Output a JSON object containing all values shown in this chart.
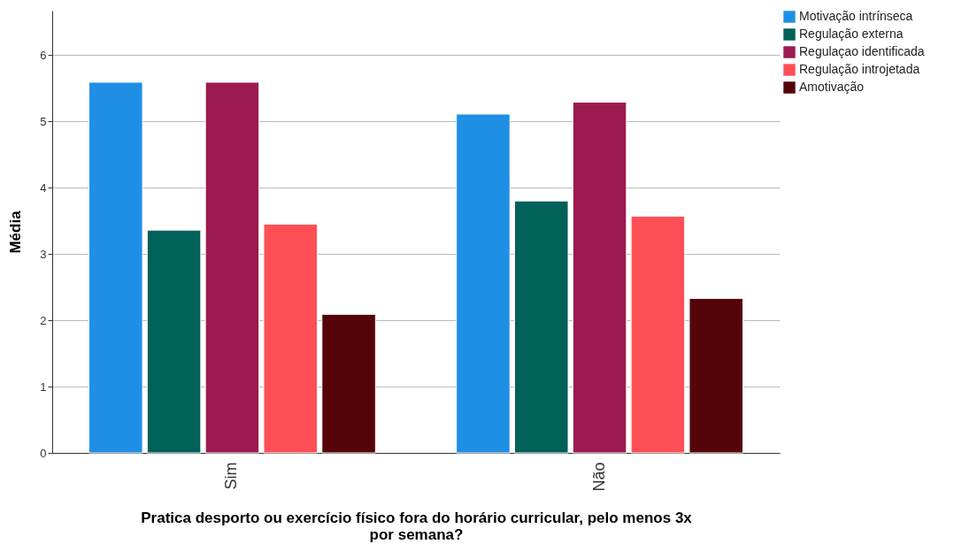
{
  "chart_data": {
    "type": "bar",
    "xlabel": "Pratica desporto ou exercício físico fora do horário curricular, pelo menos 3x por semana?",
    "ylabel": "Média",
    "categories": [
      "Sim",
      "Não"
    ],
    "series": [
      {
        "name": "Motivação intrínseca",
        "color": "#1f8fe6",
        "values": [
          5.59,
          5.11
        ]
      },
      {
        "name": "Regulação externa",
        "color": "#00605a",
        "values": [
          3.36,
          3.8
        ]
      },
      {
        "name": "Regulaçao identificada",
        "color": "#9c1a50",
        "values": [
          5.59,
          5.29
        ]
      },
      {
        "name": "Regulação introjetada",
        "color": "#ff4f56",
        "values": [
          3.45,
          3.57
        ]
      },
      {
        "name": "Amotivação",
        "color": "#55050a",
        "values": [
          2.09,
          2.33
        ]
      }
    ],
    "ylim": [
      0,
      6.67
    ],
    "yticks": [
      0,
      1,
      2,
      3,
      4,
      5,
      6
    ],
    "grid": "y",
    "legend": "top right"
  }
}
